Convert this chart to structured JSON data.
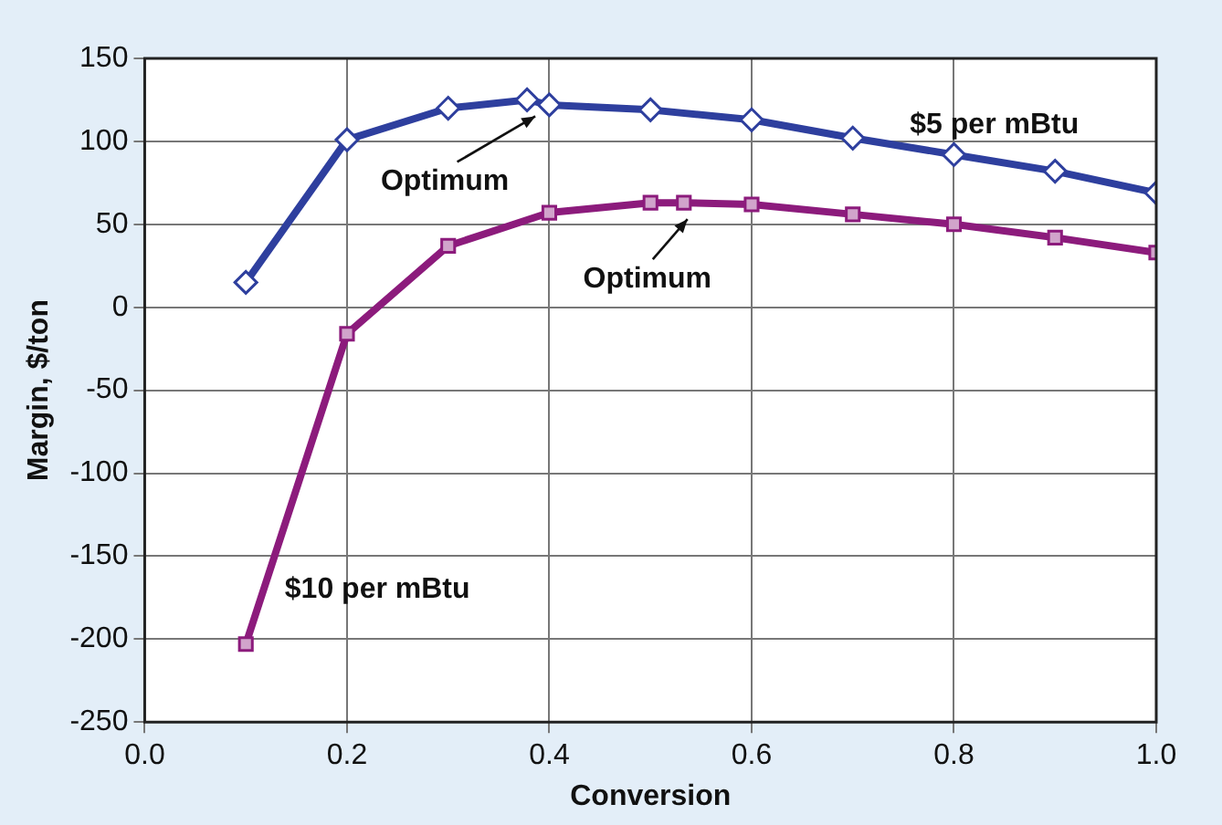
{
  "chart_data": {
    "type": "line",
    "xlabel": "Conversion",
    "ylabel": "Margin, $/ton",
    "xlim": [
      0,
      1
    ],
    "xticks": [
      {
        "value": 0,
        "label": "0.0"
      },
      0.2,
      0.4,
      0.6,
      0.8,
      {
        "value": 1,
        "label": "1.0"
      }
    ],
    "ylim": [
      -250,
      150
    ],
    "yticks": [
      -250,
      -200,
      -150,
      -100,
      -50,
      0,
      50,
      100,
      150
    ],
    "grid": true,
    "legend": false,
    "line_style": "solid",
    "series": [
      {
        "name": "$5 per mBtu",
        "color": "#2e3f9e",
        "marker": "diamond",
        "x": [
          0.1,
          0.2,
          0.3,
          0.378,
          0.4,
          0.5,
          0.6,
          0.7,
          0.8,
          0.9,
          1.0
        ],
        "values": [
          15,
          101,
          120,
          125,
          122,
          119,
          113,
          102,
          92,
          82,
          69
        ]
      },
      {
        "name": "$10 per mBtu",
        "color": "#8c1b7c",
        "marker": "square",
        "x": [
          0.1,
          0.2,
          0.3,
          0.4,
          0.5,
          0.533,
          0.6,
          0.7,
          0.8,
          0.9,
          1.0
        ],
        "values": [
          -203,
          -16,
          37,
          57,
          63,
          63,
          62,
          56,
          50,
          42,
          33
        ]
      }
    ],
    "annotations": [
      {
        "text": "Optimum",
        "x": 0.378,
        "y": 125
      },
      {
        "text": "Optimum",
        "x": 0.533,
        "y": 63
      }
    ]
  }
}
